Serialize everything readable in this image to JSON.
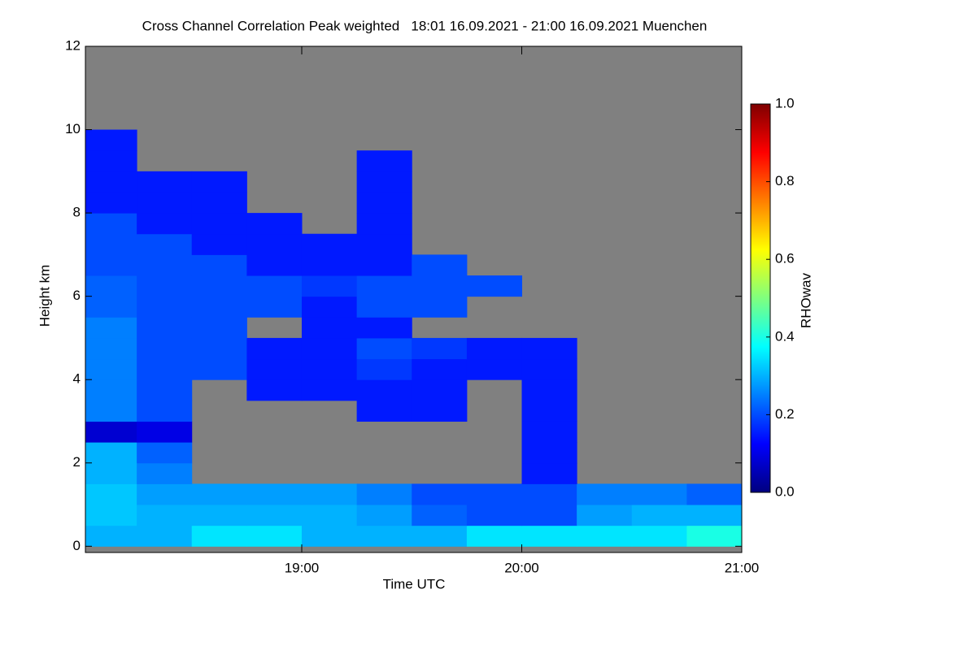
{
  "chart_data": {
    "type": "heatmap",
    "title": "Cross Channel Correlation Peak weighted   18:01 16.09.2021 - 21:00 16.09.2021 Muenchen",
    "x_label": "Time UTC",
    "y_label": "Height km",
    "xlim": [
      "18:01",
      "21:00"
    ],
    "xticks": [
      "19:00",
      "20:00",
      "21:00"
    ],
    "ylim": [
      -0.15,
      12
    ],
    "yticks": [
      0,
      2,
      4,
      6,
      8,
      10,
      12
    ],
    "xbins": [
      "18:01",
      "18:15",
      "18:30",
      "18:45",
      "19:00",
      "19:15",
      "19:30",
      "19:45",
      "20:00",
      "20:15",
      "20:30",
      "20:45",
      "21:00"
    ],
    "ybins": [
      0,
      0.5,
      1,
      1.5,
      2,
      2.5,
      3,
      3.5,
      4,
      4.5,
      5,
      5.5,
      6,
      6.5,
      7,
      7.5,
      8,
      8.5,
      9,
      9.5,
      10,
      10.5,
      11,
      11.5,
      12
    ],
    "z": [
      [
        0.3,
        0.3,
        0.35,
        0.35,
        0.3,
        0.3,
        0.3,
        0.35,
        0.35,
        0.35,
        0.35,
        0.4
      ],
      [
        0.32,
        0.3,
        0.3,
        0.3,
        0.3,
        0.28,
        0.22,
        0.2,
        0.2,
        0.28,
        0.3,
        0.3
      ],
      [
        0.32,
        0.28,
        0.28,
        0.28,
        0.28,
        0.25,
        0.2,
        0.2,
        0.2,
        0.25,
        0.25,
        0.22
      ],
      [
        0.3,
        0.25,
        null,
        null,
        null,
        null,
        null,
        null,
        0.15,
        null,
        null,
        null
      ],
      [
        0.3,
        0.22,
        null,
        null,
        null,
        null,
        null,
        null,
        0.15,
        null,
        null,
        null
      ],
      [
        0.08,
        0.1,
        null,
        null,
        null,
        null,
        null,
        null,
        0.15,
        null,
        null,
        null
      ],
      [
        0.25,
        0.2,
        null,
        null,
        null,
        0.15,
        0.15,
        null,
        0.15,
        null,
        null,
        null
      ],
      [
        0.25,
        0.2,
        null,
        0.15,
        0.15,
        0.15,
        0.15,
        null,
        0.15,
        null,
        null,
        null
      ],
      [
        0.25,
        0.2,
        0.2,
        0.15,
        0.15,
        0.18,
        0.15,
        0.15,
        0.15,
        null,
        null,
        null
      ],
      [
        0.25,
        0.2,
        0.2,
        0.15,
        0.15,
        0.2,
        0.18,
        0.15,
        0.15,
        null,
        null,
        null
      ],
      [
        0.25,
        0.2,
        0.2,
        null,
        0.15,
        0.15,
        null,
        null,
        null,
        null,
        null,
        null
      ],
      [
        0.22,
        0.2,
        0.2,
        0.2,
        0.15,
        0.2,
        0.2,
        null,
        null,
        null,
        null,
        null
      ],
      [
        0.22,
        0.2,
        0.2,
        0.2,
        0.18,
        0.2,
        0.2,
        0.2,
        null,
        null,
        null,
        null
      ],
      [
        0.2,
        0.2,
        0.2,
        0.15,
        0.15,
        0.15,
        0.2,
        null,
        null,
        null,
        null,
        null
      ],
      [
        0.2,
        0.2,
        0.15,
        0.15,
        0.15,
        0.15,
        null,
        null,
        null,
        null,
        null,
        null
      ],
      [
        0.2,
        0.15,
        0.15,
        0.15,
        null,
        0.15,
        null,
        null,
        null,
        null,
        null,
        null
      ],
      [
        0.15,
        0.15,
        0.15,
        null,
        null,
        0.15,
        null,
        null,
        null,
        null,
        null,
        null
      ],
      [
        0.15,
        0.15,
        0.15,
        null,
        null,
        0.15,
        null,
        null,
        null,
        null,
        null,
        null
      ],
      [
        0.15,
        null,
        null,
        null,
        null,
        0.15,
        null,
        null,
        null,
        null,
        null,
        null
      ],
      [
        0.15,
        null,
        null,
        null,
        null,
        null,
        null,
        null,
        null,
        null,
        null,
        null
      ],
      [
        null,
        null,
        null,
        null,
        null,
        null,
        null,
        null,
        null,
        null,
        null,
        null
      ],
      [
        null,
        null,
        null,
        null,
        null,
        null,
        null,
        null,
        null,
        null,
        null,
        null
      ],
      [
        null,
        null,
        null,
        null,
        null,
        null,
        null,
        null,
        null,
        null,
        null,
        null
      ],
      [
        null,
        null,
        null,
        null,
        null,
        null,
        null,
        null,
        null,
        null,
        null,
        null
      ]
    ],
    "missing_color": "#808080",
    "colorscale": [
      "#00007f",
      "#0000ff",
      "#007fff",
      "#00ffff",
      "#7fff7f",
      "#ffff00",
      "#ff7f00",
      "#ff0000",
      "#7f0000"
    ],
    "colorbar": {
      "label": "RHOwav",
      "lim": [
        0,
        1
      ],
      "ticks": [
        {
          "value": 0,
          "label": "0.0"
        },
        {
          "value": 0.2,
          "label": "0.2"
        },
        {
          "value": 0.4,
          "label": "0.4"
        },
        {
          "value": 0.6,
          "label": "0.6"
        },
        {
          "value": 0.8,
          "label": "0.8"
        },
        {
          "value": 1,
          "label": "1.0"
        }
      ]
    }
  }
}
